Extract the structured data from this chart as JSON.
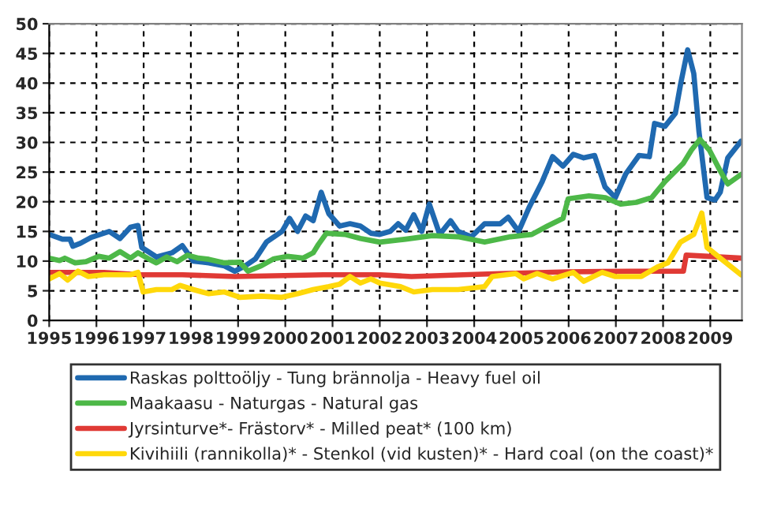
{
  "chart_data": {
    "type": "line",
    "xlim": [
      1995,
      2009.67
    ],
    "xticks": [
      1995,
      1996,
      1997,
      1998,
      1999,
      2000,
      2001,
      2002,
      2003,
      2004,
      2005,
      2006,
      2007,
      2008,
      2009
    ],
    "ylim": [
      0,
      50
    ],
    "yticks": [
      0,
      5,
      10,
      15,
      20,
      25,
      30,
      35,
      40,
      45,
      50
    ],
    "grid": true,
    "legend": "bottom",
    "line_style": "solid",
    "marker": "none",
    "series": [
      {
        "name": "Raskas polttoöljy - Tung brännolja - Heavy fuel oil",
        "color": "#1f69b0",
        "x": [
          1995.0,
          1995.28,
          1995.44,
          1995.5,
          1995.66,
          1995.89,
          1996.27,
          1996.5,
          1996.72,
          1996.88,
          1996.96,
          1997.27,
          1997.6,
          1997.82,
          1998.05,
          1998.38,
          1998.71,
          1998.93,
          1999.15,
          1999.37,
          1999.6,
          1999.93,
          2000.09,
          2000.26,
          2000.43,
          2000.59,
          2000.76,
          2000.92,
          2001.15,
          2001.37,
          2001.59,
          2001.81,
          2002.0,
          2002.22,
          2002.39,
          2002.55,
          2002.72,
          2002.89,
          2003.05,
          2003.27,
          2003.5,
          2003.66,
          2003.94,
          2004.22,
          2004.55,
          2004.72,
          2004.94,
          2005.16,
          2005.44,
          2005.66,
          2005.88,
          2006.1,
          2006.32,
          2006.55,
          2006.77,
          2006.99,
          2007.21,
          2007.49,
          2007.71,
          2007.82,
          2008.04,
          2008.26,
          2008.37,
          2008.52,
          2008.65,
          2008.76,
          2008.93,
          2009.1,
          2009.21,
          2009.37,
          2009.65
        ],
        "values": [
          14.5,
          13.7,
          13.7,
          12.5,
          13,
          14,
          15,
          13.8,
          15.7,
          16,
          12.3,
          10.7,
          11.4,
          12.6,
          10,
          9.7,
          9.2,
          8.3,
          9.2,
          10.4,
          13.2,
          15,
          17.2,
          15,
          17.6,
          16.8,
          21.6,
          18,
          15.9,
          16.3,
          15.9,
          14.7,
          14.5,
          15,
          16.3,
          15.2,
          17.8,
          15,
          19.6,
          14.5,
          16.8,
          15,
          14.1,
          16.3,
          16.3,
          17.4,
          15,
          19,
          23.4,
          27.6,
          26,
          28,
          27.4,
          27.8,
          22.5,
          20.7,
          24.7,
          27.8,
          27.6,
          33.2,
          32.7,
          34.9,
          39.8,
          45.6,
          41.6,
          31.8,
          20.7,
          20.3,
          21.6,
          27.4,
          30.2
        ]
      },
      {
        "name": "Maakaasu - Naturgas - Natural gas",
        "color": "#4db848",
        "x": [
          1995.0,
          1995.22,
          1995.33,
          1995.55,
          1995.78,
          1996.05,
          1996.27,
          1996.5,
          1996.72,
          1996.88,
          1997.1,
          1997.27,
          1997.49,
          1997.71,
          1997.93,
          1998.16,
          1998.38,
          1998.71,
          1999.04,
          1999.21,
          1999.49,
          1999.76,
          2000.04,
          2000.37,
          2000.59,
          2000.7,
          2000.87,
          2001.26,
          2001.59,
          2002.0,
          2002.55,
          2003.11,
          2003.66,
          2004.22,
          2004.77,
          2005.22,
          2005.55,
          2005.88,
          2005.99,
          2006.43,
          2006.77,
          2007.1,
          2007.43,
          2007.76,
          2008.04,
          2008.43,
          2008.6,
          2008.78,
          2008.98,
          2009.21,
          2009.37,
          2009.65
        ],
        "values": [
          10.5,
          10.1,
          10.5,
          9.7,
          9.9,
          10.8,
          10.5,
          11.6,
          10.5,
          11.4,
          10.4,
          9.7,
          10.7,
          9.9,
          11,
          10.5,
          10.3,
          9.7,
          9.8,
          8.3,
          9.2,
          10.4,
          10.8,
          10.5,
          11.4,
          12.8,
          14.7,
          14.5,
          13.8,
          13.2,
          13.7,
          14.3,
          14.1,
          13.2,
          14.1,
          14.5,
          15.9,
          17.2,
          20.5,
          21,
          20.7,
          19.6,
          19.9,
          20.7,
          23.4,
          26.5,
          28.7,
          30.5,
          28.7,
          25.2,
          23,
          24.6
        ]
      },
      {
        "name": "Jyrsinturve*- Frästorv* - Milled peat* (100 km)",
        "color": "#e03a35",
        "x": [
          1995.0,
          1996.16,
          1996.94,
          1997.82,
          1998.93,
          2000.81,
          2002.0,
          2002.67,
          2003.77,
          2004.55,
          2005.99,
          2007.32,
          2008.43,
          2008.49,
          2009.65
        ],
        "values": [
          8.1,
          8.1,
          7.7,
          7.7,
          7.4,
          7.7,
          7.7,
          7.4,
          7.7,
          7.9,
          8.2,
          8.3,
          8.3,
          11,
          10.5
        ]
      },
      {
        "name": "Kivihiili (rannikolla)* - Stenkol (vid kusten)* - Hard coal (on the coast)*",
        "color": "#ffd80a",
        "x": [
          1995.0,
          1995.22,
          1995.39,
          1995.61,
          1995.83,
          1996.16,
          1996.72,
          1996.88,
          1996.99,
          1997.27,
          1997.6,
          1997.77,
          1998.05,
          1998.38,
          1998.71,
          1999.04,
          1999.49,
          1999.93,
          2000.26,
          2000.59,
          2000.92,
          2001.15,
          2001.37,
          2001.59,
          2001.81,
          2002.0,
          2002.44,
          2002.72,
          2003.11,
          2003.66,
          2004.22,
          2004.38,
          2004.88,
          2005.05,
          2005.33,
          2005.66,
          2006.1,
          2006.32,
          2006.71,
          2006.99,
          2007.54,
          2007.88,
          2008.1,
          2008.37,
          2008.65,
          2008.82,
          2008.93,
          2009.21,
          2009.65
        ],
        "values": [
          7,
          7.9,
          6.8,
          8.3,
          7.4,
          7.7,
          7.7,
          8.1,
          4.8,
          5.2,
          5.2,
          5.9,
          5.2,
          4.5,
          4.8,
          3.9,
          4.1,
          3.9,
          4.5,
          5.2,
          5.7,
          6.1,
          7.4,
          6.3,
          7,
          6.3,
          5.7,
          4.8,
          5.2,
          5.2,
          5.7,
          7.4,
          7.9,
          7,
          7.9,
          7,
          8.1,
          6.6,
          8.1,
          7.4,
          7.4,
          9,
          9.7,
          13.2,
          14.5,
          18.1,
          12.3,
          10.5,
          7.7
        ]
      }
    ]
  }
}
